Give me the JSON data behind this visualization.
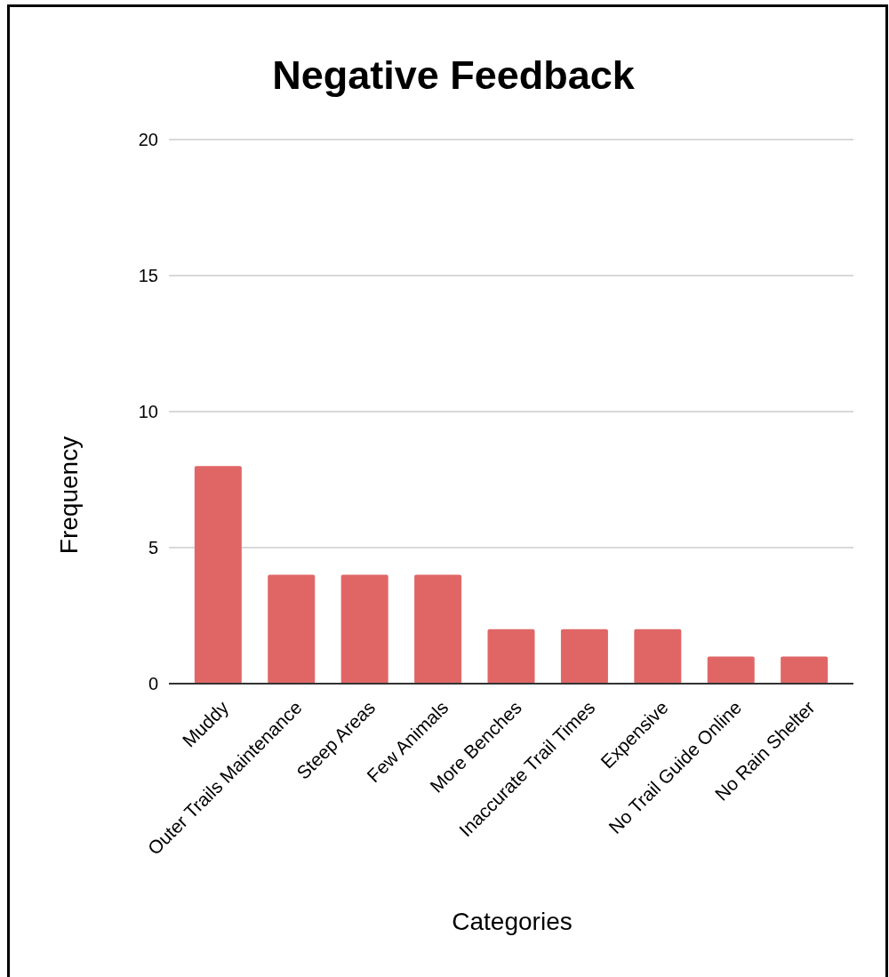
{
  "chart_data": {
    "type": "bar",
    "title": "Negative Feedback",
    "xlabel": "Categories",
    "ylabel": "Frequency",
    "categories": [
      "Muddy",
      "Outer Trails Maintenance",
      "Steep Areas",
      "Few Animals",
      "More Benches",
      "Inaccurate Trail Times",
      "Expensive",
      "No Trail Guide Online",
      "No Rain Shelter"
    ],
    "values": [
      8,
      4,
      4,
      4,
      2,
      2,
      2,
      1,
      1
    ],
    "color": "#e06666",
    "ylim": [
      0,
      20
    ],
    "yticks": [
      0,
      5,
      10,
      15,
      20
    ],
    "grid": "y"
  }
}
